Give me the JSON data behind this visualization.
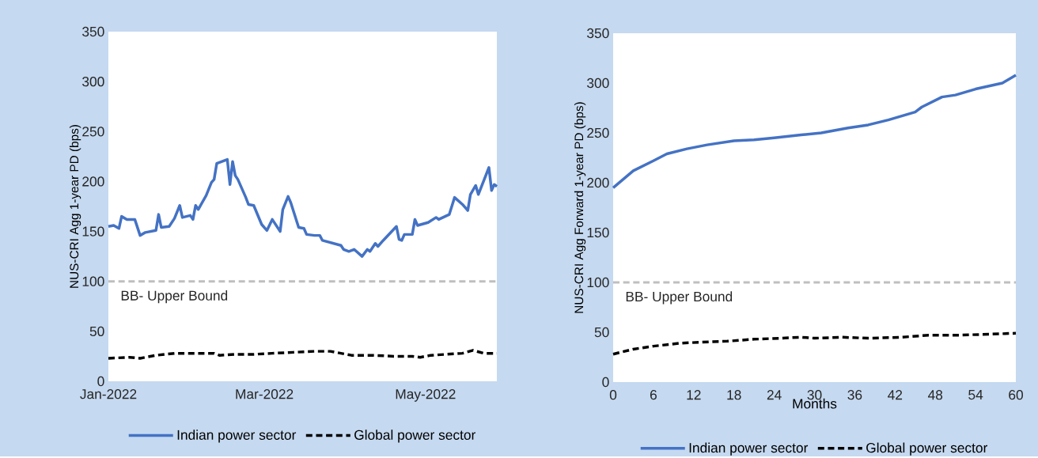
{
  "chart_data": [
    {
      "type": "line",
      "ylabel": "NUS-CRI Agg 1-year PD (bps)",
      "legend": "bottom",
      "xlim": [
        "2022-01-01",
        "2022-05-28"
      ],
      "ylim": [
        0,
        350
      ],
      "xticks": [
        {
          "value": "2022-01-01",
          "label": "Jan-2022"
        },
        {
          "value": "2022-03-01",
          "label": "Mar-2022"
        },
        {
          "value": "2022-05-01",
          "label": "May-2022"
        }
      ],
      "yticks": [
        0,
        50,
        100,
        150,
        200,
        250,
        300,
        350
      ],
      "ref_lines": [
        {
          "axis": "y",
          "value": 100,
          "label": "BB- Upper Bound",
          "color": "#bfbfbf",
          "line_style": "dashed"
        }
      ],
      "series": [
        {
          "name": "Indian power sector",
          "color": "#4472c4",
          "line_style": "solid",
          "x": [
            "2022-01-01",
            "2022-01-03",
            "2022-01-05",
            "2022-01-06",
            "2022-01-08",
            "2022-01-11",
            "2022-01-13",
            "2022-01-15",
            "2022-01-19",
            "2022-01-20",
            "2022-01-21",
            "2022-01-24",
            "2022-01-26",
            "2022-01-28",
            "2022-01-29",
            "2022-02-01",
            "2022-02-02",
            "2022-02-03",
            "2022-02-04",
            "2022-02-07",
            "2022-02-09",
            "2022-02-10",
            "2022-02-11",
            "2022-02-15",
            "2022-02-16",
            "2022-02-17",
            "2022-02-18",
            "2022-02-19",
            "2022-02-22",
            "2022-02-23",
            "2022-02-25",
            "2022-02-28",
            "2022-03-02",
            "2022-03-04",
            "2022-03-07",
            "2022-03-08",
            "2022-03-10",
            "2022-03-11",
            "2022-03-14",
            "2022-03-16",
            "2022-03-17",
            "2022-03-20",
            "2022-03-22",
            "2022-03-23",
            "2022-03-30",
            "2022-03-31",
            "2022-04-02",
            "2022-04-04",
            "2022-04-07",
            "2022-04-09",
            "2022-04-10",
            "2022-04-12",
            "2022-04-13",
            "2022-04-15",
            "2022-04-20",
            "2022-04-21",
            "2022-04-22",
            "2022-04-23",
            "2022-04-26",
            "2022-04-27",
            "2022-04-28",
            "2022-05-02",
            "2022-05-05",
            "2022-05-06",
            "2022-05-10",
            "2022-05-12",
            "2022-05-15",
            "2022-05-17",
            "2022-05-18",
            "2022-05-20",
            "2022-05-21",
            "2022-05-25",
            "2022-05-26",
            "2022-05-27",
            "2022-05-28"
          ],
          "values": [
            155,
            156,
            153,
            165,
            162,
            162,
            146,
            149,
            151,
            167,
            154,
            155,
            163,
            176,
            164,
            166,
            162,
            176,
            172,
            186,
            199,
            202,
            218,
            222,
            197,
            220,
            206,
            202,
            184,
            177,
            176,
            157,
            151,
            162,
            150,
            172,
            185,
            179,
            154,
            153,
            147,
            146,
            146,
            141,
            136,
            132,
            130,
            132,
            125,
            132,
            130,
            138,
            135,
            141,
            155,
            142,
            141,
            147,
            147,
            162,
            156,
            159,
            164,
            162,
            167,
            184,
            177,
            171,
            187,
            196,
            187,
            214,
            191,
            197,
            195
          ]
        },
        {
          "name": "Global power sector",
          "color": "#000000",
          "line_style": "dashed",
          "x": [
            "2022-01-01",
            "2022-01-09",
            "2022-01-13",
            "2022-01-19",
            "2022-01-26",
            "2022-02-02",
            "2022-02-10",
            "2022-02-12",
            "2022-02-18",
            "2022-02-25",
            "2022-03-04",
            "2022-03-12",
            "2022-03-20",
            "2022-03-26",
            "2022-03-30",
            "2022-04-03",
            "2022-04-11",
            "2022-04-19",
            "2022-04-26",
            "2022-04-29",
            "2022-05-03",
            "2022-05-09",
            "2022-05-15",
            "2022-05-19",
            "2022-05-23",
            "2022-05-28"
          ],
          "values": [
            23,
            24,
            23,
            26,
            28,
            28,
            28,
            26,
            27,
            27,
            28,
            29,
            30,
            30,
            28,
            26,
            26,
            25,
            25,
            24,
            26,
            27,
            28,
            31,
            28,
            28
          ]
        }
      ]
    },
    {
      "type": "line",
      "ylabel": "NUS-CRI Agg Forward 1-year PD (bps)",
      "xlabel": "Months",
      "legend": "bottom",
      "xlim": [
        0,
        60
      ],
      "ylim": [
        0,
        350
      ],
      "xticks": [
        0,
        6,
        12,
        18,
        24,
        30,
        36,
        42,
        48,
        54,
        60
      ],
      "yticks": [
        0,
        50,
        100,
        150,
        200,
        250,
        300,
        350
      ],
      "ref_lines": [
        {
          "axis": "y",
          "value": 100,
          "label": "BB- Upper Bound",
          "color": "#bfbfbf",
          "line_style": "dashed"
        }
      ],
      "series": [
        {
          "name": "Indian power sector",
          "color": "#4472c4",
          "line_style": "solid",
          "x": [
            0,
            3,
            6,
            8,
            11,
            14,
            18,
            21,
            24,
            28,
            31,
            35,
            38,
            41,
            45,
            46,
            49,
            51,
            54,
            58,
            60
          ],
          "values": [
            195,
            212,
            222,
            229,
            234,
            238,
            242,
            243,
            245,
            248,
            250,
            255,
            258,
            263,
            271,
            276,
            286,
            288,
            294,
            300,
            308
          ]
        },
        {
          "name": "Global power sector",
          "color": "#000000",
          "line_style": "dashed",
          "x": [
            0,
            3,
            6,
            10,
            13,
            17,
            21,
            25,
            28,
            30,
            34,
            38,
            43,
            47,
            51,
            56,
            60
          ],
          "values": [
            28,
            33,
            36,
            39,
            40,
            41,
            43,
            44,
            45,
            44,
            45,
            44,
            45,
            47,
            47,
            48,
            49
          ]
        }
      ]
    }
  ]
}
